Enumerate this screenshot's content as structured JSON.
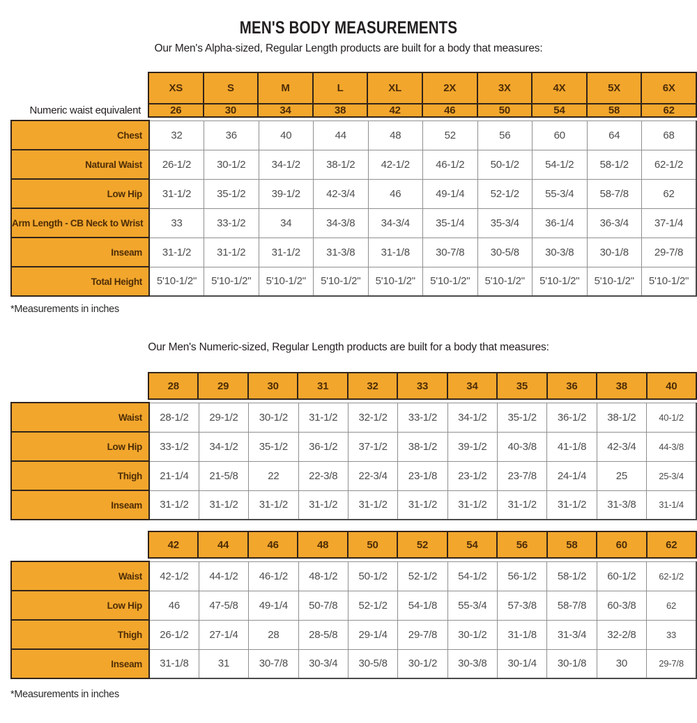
{
  "page": {
    "title": "MEN'S BODY MEASUREMENTS"
  },
  "colors": {
    "accent": "#F2A62C",
    "accent_border": "#32241A",
    "accent_text": "#4E2D07",
    "heading_text": "#231F20",
    "value_text": "#4D4D4F",
    "grid_line": "#8F8F8F",
    "grid_outer": "#4A4A4A"
  },
  "alpha_table": {
    "subtitle": "Our Men's Alpha-sized, Regular Length products are built for a body that measures:",
    "sizes": [
      "XS",
      "S",
      "M",
      "L",
      "XL",
      "2X",
      "3X",
      "4X",
      "5X",
      "6X"
    ],
    "numeric_waist_label": "Numeric waist equivalent",
    "numeric_waist_values": [
      "26",
      "30",
      "34",
      "38",
      "42",
      "46",
      "50",
      "54",
      "58",
      "62"
    ],
    "rows": [
      {
        "label": "Chest",
        "values": [
          "32",
          "36",
          "40",
          "44",
          "48",
          "52",
          "56",
          "60",
          "64",
          "68"
        ]
      },
      {
        "label": "Natural Waist",
        "values": [
          "26-1/2",
          "30-1/2",
          "34-1/2",
          "38-1/2",
          "42-1/2",
          "46-1/2",
          "50-1/2",
          "54-1/2",
          "58-1/2",
          "62-1/2"
        ]
      },
      {
        "label": "Low Hip",
        "values": [
          "31-1/2",
          "35-1/2",
          "39-1/2",
          "42-3/4",
          "46",
          "49-1/4",
          "52-1/2",
          "55-3/4",
          "58-7/8",
          "62"
        ]
      },
      {
        "label": "Arm Length - CB Neck to Wrist",
        "values": [
          "33",
          "33-1/2",
          "34",
          "34-3/8",
          "34-3/4",
          "35-1/4",
          "35-3/4",
          "36-1/4",
          "36-3/4",
          "37-1/4"
        ]
      },
      {
        "label": "Inseam",
        "values": [
          "31-1/2",
          "31-1/2",
          "31-1/2",
          "31-3/8",
          "31-1/8",
          "30-7/8",
          "30-5/8",
          "30-3/8",
          "30-1/8",
          "29-7/8"
        ]
      },
      {
        "label": "Total Height",
        "values": [
          "5'10-1/2\"",
          "5'10-1/2\"",
          "5'10-1/2\"",
          "5'10-1/2\"",
          "5'10-1/2\"",
          "5'10-1/2\"",
          "5'10-1/2\"",
          "5'10-1/2\"",
          "5'10-1/2\"",
          "5'10-1/2\""
        ]
      }
    ],
    "footnote": "*Measurements in inches"
  },
  "numeric_tables": {
    "subtitle": "Our Men's Numeric-sized, Regular Length products are built for a body that measures:",
    "table_small": {
      "sizes": [
        "28",
        "29",
        "30",
        "31",
        "32",
        "33",
        "34",
        "35",
        "36",
        "38",
        "40"
      ],
      "rows": [
        {
          "label": "Waist",
          "values": [
            "28-1/2",
            "29-1/2",
            "30-1/2",
            "31-1/2",
            "32-1/2",
            "33-1/2",
            "34-1/2",
            "35-1/2",
            "36-1/2",
            "38-1/2",
            "40-1/2"
          ]
        },
        {
          "label": "Low Hip",
          "values": [
            "33-1/2",
            "34-1/2",
            "35-1/2",
            "36-1/2",
            "37-1/2",
            "38-1/2",
            "39-1/2",
            "40-3/8",
            "41-1/8",
            "42-3/4",
            "44-3/8"
          ]
        },
        {
          "label": "Thigh",
          "values": [
            "21-1/4",
            "21-5/8",
            "22",
            "22-3/8",
            "22-3/4",
            "23-1/8",
            "23-1/2",
            "23-7/8",
            "24-1/4",
            "25",
            "25-3/4"
          ]
        },
        {
          "label": "Inseam",
          "values": [
            "31-1/2",
            "31-1/2",
            "31-1/2",
            "31-1/2",
            "31-1/2",
            "31-1/2",
            "31-1/2",
            "31-1/2",
            "31-1/2",
            "31-3/8",
            "31-1/4"
          ]
        }
      ]
    },
    "table_large": {
      "sizes": [
        "42",
        "44",
        "46",
        "48",
        "50",
        "52",
        "54",
        "56",
        "58",
        "60",
        "62"
      ],
      "rows": [
        {
          "label": "Waist",
          "values": [
            "42-1/2",
            "44-1/2",
            "46-1/2",
            "48-1/2",
            "50-1/2",
            "52-1/2",
            "54-1/2",
            "56-1/2",
            "58-1/2",
            "60-1/2",
            "62-1/2"
          ]
        },
        {
          "label": "Low Hip",
          "values": [
            "46",
            "47-5/8",
            "49-1/4",
            "50-7/8",
            "52-1/2",
            "54-1/8",
            "55-3/4",
            "57-3/8",
            "58-7/8",
            "60-3/8",
            "62"
          ]
        },
        {
          "label": "Thigh",
          "values": [
            "26-1/2",
            "27-1/4",
            "28",
            "28-5/8",
            "29-1/4",
            "29-7/8",
            "30-1/2",
            "31-1/8",
            "31-3/4",
            "32-2/8",
            "33"
          ]
        },
        {
          "label": "Inseam",
          "values": [
            "31-1/8",
            "31",
            "30-7/8",
            "30-3/4",
            "30-5/8",
            "30-1/2",
            "30-3/8",
            "30-1/4",
            "30-1/8",
            "30",
            "29-7/8"
          ]
        }
      ]
    },
    "footnote": "*Measurements in inches"
  }
}
